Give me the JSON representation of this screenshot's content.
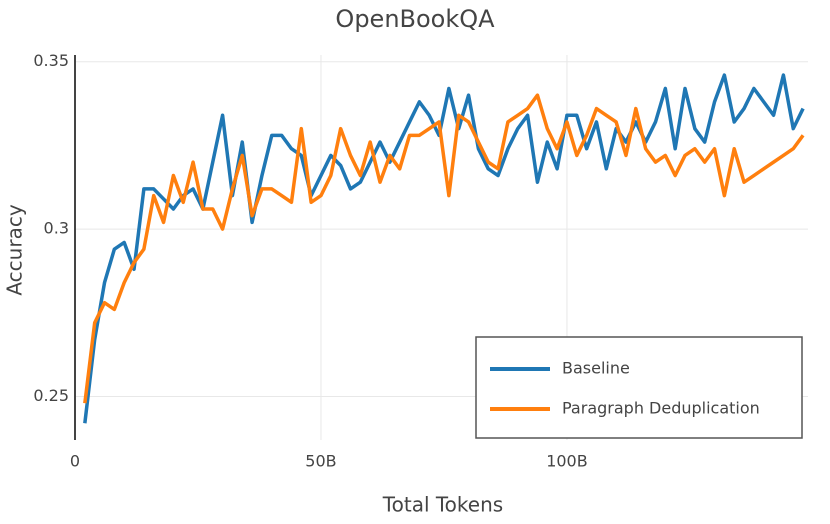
{
  "chart_data": {
    "type": "line",
    "title": "OpenBookQA",
    "x_label": "Total Tokens",
    "y_label": "Accuracy",
    "x": [
      2,
      4,
      6,
      8,
      10,
      12,
      14,
      16,
      18,
      20,
      22,
      24,
      26,
      28,
      30,
      32,
      34,
      36,
      38,
      40,
      42,
      44,
      46,
      48,
      50,
      52,
      54,
      56,
      58,
      60,
      62,
      64,
      66,
      68,
      70,
      72,
      74,
      76,
      78,
      80,
      82,
      84,
      86,
      88,
      90,
      92,
      94,
      96,
      98,
      100,
      102,
      104,
      106,
      108,
      110,
      112,
      114,
      116,
      118,
      120,
      122,
      124,
      126,
      128,
      130,
      132,
      134,
      136,
      138,
      140,
      142,
      144,
      146,
      148
    ],
    "series": [
      {
        "name": "Baseline",
        "color": "#1f77b4",
        "values": [
          0.242,
          0.267,
          0.284,
          0.294,
          0.296,
          0.288,
          0.312,
          0.312,
          0.309,
          0.306,
          0.31,
          0.312,
          0.306,
          0.32,
          0.334,
          0.31,
          0.326,
          0.302,
          0.316,
          0.328,
          0.328,
          0.324,
          0.322,
          0.31,
          0.316,
          0.322,
          0.319,
          0.312,
          0.314,
          0.32,
          0.326,
          0.32,
          0.326,
          0.332,
          0.338,
          0.334,
          0.328,
          0.342,
          0.33,
          0.34,
          0.324,
          0.318,
          0.316,
          0.324,
          0.33,
          0.334,
          0.314,
          0.326,
          0.318,
          0.334,
          0.334,
          0.324,
          0.332,
          0.318,
          0.33,
          0.326,
          0.332,
          0.326,
          0.332,
          0.342,
          0.324,
          0.342,
          0.33,
          0.326,
          0.338,
          0.346,
          0.332,
          0.336,
          0.342,
          0.338,
          0.334,
          0.346,
          0.33,
          0.336
        ]
      },
      {
        "name": "Paragraph Deduplication",
        "color": "#ff7f0e",
        "values": [
          0.248,
          0.272,
          0.278,
          0.276,
          0.284,
          0.29,
          0.294,
          0.31,
          0.302,
          0.316,
          0.308,
          0.32,
          0.306,
          0.306,
          0.3,
          0.312,
          0.322,
          0.304,
          0.312,
          0.312,
          0.31,
          0.308,
          0.33,
          0.308,
          0.31,
          0.316,
          0.33,
          0.322,
          0.316,
          0.326,
          0.314,
          0.322,
          0.318,
          0.328,
          0.328,
          0.33,
          0.332,
          0.31,
          0.334,
          0.332,
          0.326,
          0.32,
          0.318,
          0.332,
          0.334,
          0.336,
          0.34,
          0.33,
          0.324,
          0.332,
          0.322,
          0.328,
          0.336,
          0.334,
          0.332,
          0.322,
          0.336,
          0.324,
          0.32,
          0.322,
          0.316,
          0.322,
          0.324,
          0.32,
          0.324,
          0.31,
          0.324,
          0.314,
          0.316,
          0.318,
          0.32,
          0.322,
          0.324,
          0.328
        ]
      }
    ],
    "xlim": [
      0,
      149
    ],
    "xticks": [
      0,
      {
        "value": 50,
        "label": "50B"
      },
      {
        "value": 100,
        "label": "100B"
      }
    ],
    "ylim": [
      0.237,
      0.352
    ],
    "yticks": [
      0.25,
      0.3,
      0.35
    ],
    "grid": true,
    "legend": "lower right"
  }
}
